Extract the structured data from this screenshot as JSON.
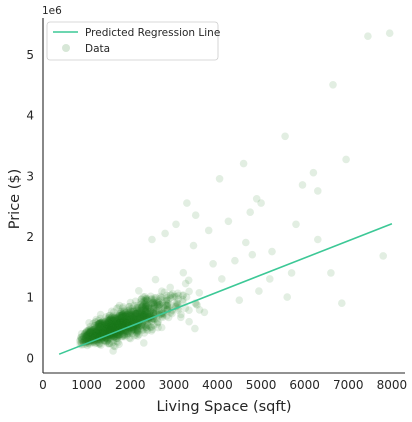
{
  "chart_data": {
    "type": "scatter",
    "title": "",
    "xlabel": "Living Space (sqft)",
    "ylabel": "Price ($)",
    "xlim": [
      0,
      8300
    ],
    "ylim": [
      -0.25,
      5.6
    ],
    "y_scale_label": "1e6",
    "xticks": [
      0,
      1000,
      2000,
      3000,
      4000,
      5000,
      6000,
      7000,
      8000
    ],
    "yticks": [
      0,
      1,
      2,
      3,
      4,
      5
    ],
    "grid": false,
    "legend_position": "top-left",
    "colors": {
      "line": "#3cc896",
      "points": "#1f7a1f",
      "axis": "#262626"
    },
    "series": [
      {
        "name": "Predicted Regression Line",
        "kind": "line",
        "x": [
          370,
          8000
        ],
        "y": [
          0.06,
          2.21
        ]
      },
      {
        "name": "Data",
        "kind": "scatter",
        "points_generator": {
          "count": 1400,
          "x_range": [
            370,
            3600
          ],
          "slope_per_1000sqft": 0.28,
          "intercept": 0.0
        },
        "outliers": [
          [
            7450,
            5.3
          ],
          [
            7950,
            5.35
          ],
          [
            6650,
            4.5
          ],
          [
            6950,
            3.27
          ],
          [
            4600,
            3.2
          ],
          [
            5550,
            3.65
          ],
          [
            6200,
            3.05
          ],
          [
            5950,
            2.85
          ],
          [
            6300,
            2.75
          ],
          [
            4050,
            2.95
          ],
          [
            4900,
            2.62
          ],
          [
            5000,
            2.55
          ],
          [
            4750,
            2.4
          ],
          [
            5800,
            2.2
          ],
          [
            6300,
            1.95
          ],
          [
            6600,
            1.4
          ],
          [
            7800,
            1.68
          ],
          [
            5250,
            1.75
          ],
          [
            4650,
            1.9
          ],
          [
            5600,
            1.0
          ],
          [
            4400,
            1.6
          ],
          [
            4100,
            1.3
          ],
          [
            3800,
            2.1
          ],
          [
            3500,
            2.35
          ],
          [
            3300,
            2.55
          ],
          [
            3050,
            2.2
          ],
          [
            4500,
            0.95
          ],
          [
            3700,
            0.75
          ],
          [
            5200,
            1.3
          ],
          [
            4250,
            2.25
          ],
          [
            3900,
            1.55
          ],
          [
            2800,
            2.05
          ],
          [
            2500,
            1.95
          ],
          [
            4950,
            1.1
          ],
          [
            5700,
            1.4
          ],
          [
            6850,
            0.9
          ],
          [
            3450,
            1.85
          ],
          [
            4800,
            1.7
          ]
        ]
      }
    ]
  }
}
